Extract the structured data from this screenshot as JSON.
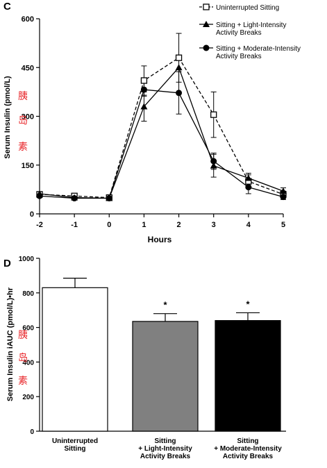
{
  "panels": [
    {
      "letter": "C",
      "chart_data": {
        "type": "line",
        "xlabel": "Hours",
        "ylabel": "Serum Insulin (pmol/L)",
        "ylabel_annotation": [
          "胰",
          "岛",
          "素"
        ],
        "xlim": [
          -2,
          5
        ],
        "ylim": [
          0,
          600
        ],
        "yticks": [
          0,
          150,
          300,
          450,
          600
        ],
        "xticks": [
          -2,
          -1,
          0,
          1,
          2,
          3,
          4,
          5
        ],
        "x": [
          -2,
          -1,
          0,
          1,
          2,
          3,
          4,
          5
        ],
        "legend_position": "top-right",
        "series": [
          {
            "name": "Uninterrupted Sitting",
            "marker": "open-square",
            "line": "dashed",
            "values": [
              60,
              55,
              50,
              410,
              480,
              305,
              100,
              60
            ],
            "error": [
              8,
              6,
              5,
              45,
              75,
              70,
              20,
              10
            ]
          },
          {
            "name": "Sitting + Light-Intensity Activity Breaks",
            "marker": "filled-triangle",
            "line": "solid",
            "values": [
              62,
              50,
              48,
              330,
              450,
              148,
              110,
              70
            ],
            "error": [
              6,
              5,
              5,
              45,
              0,
              35,
              15,
              10
            ]
          },
          {
            "name": "Sitting + Moderate-Intensity Activity Breaks",
            "marker": "filled-circle",
            "line": "solid",
            "values": [
              55,
              48,
              48,
              382,
              372,
              162,
              82,
              52
            ],
            "error": [
              5,
              4,
              4,
              20,
              65,
              25,
              20,
              8
            ]
          }
        ]
      }
    },
    {
      "letter": "D",
      "chart_data": {
        "type": "bar",
        "ylabel": "Serum Insulin iAUC (pmol/L)•hr",
        "ylabel_annotation": [
          "胰",
          "岛",
          "素"
        ],
        "ylim": [
          0,
          1000
        ],
        "yticks": [
          0,
          200,
          400,
          600,
          800,
          1000
        ],
        "categories": [
          [
            "Uninterrupted",
            "Sitting"
          ],
          [
            "Sitting",
            "+ Light-Intensity",
            "Activity Breaks"
          ],
          [
            "Sitting",
            "+ Moderate-Intensity",
            "Activity Breaks"
          ]
        ],
        "values": [
          830,
          635,
          640
        ],
        "error": [
          55,
          45,
          45
        ],
        "bar_colors": [
          "#ffffff",
          "#808080",
          "#000000"
        ],
        "significance": [
          "",
          "*",
          "*"
        ]
      }
    }
  ]
}
